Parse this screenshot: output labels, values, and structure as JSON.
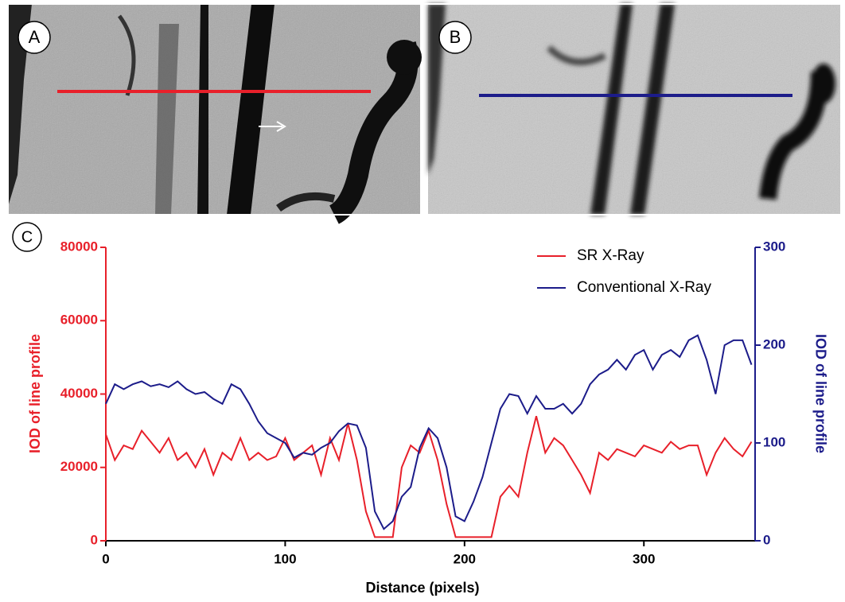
{
  "panel_labels": [
    "A",
    "B",
    "C"
  ],
  "chart_data": {
    "type": "line",
    "x_label": "Distance (pixels)",
    "y_label": "IOD of line profile",
    "y2_label": "IOD of line profile",
    "x": [
      0,
      5,
      10,
      15,
      20,
      25,
      30,
      35,
      40,
      45,
      50,
      55,
      60,
      65,
      70,
      75,
      80,
      85,
      90,
      95,
      100,
      105,
      110,
      115,
      120,
      125,
      130,
      135,
      140,
      145,
      150,
      155,
      160,
      165,
      170,
      175,
      180,
      185,
      190,
      195,
      200,
      205,
      210,
      215,
      220,
      225,
      230,
      235,
      240,
      245,
      250,
      255,
      260,
      265,
      270,
      275,
      280,
      285,
      290,
      295,
      300,
      305,
      310,
      315,
      320,
      325,
      330,
      335,
      340,
      345,
      350,
      355,
      360
    ],
    "series": [
      {
        "name": "SR X-Ray",
        "color": "#e8202a",
        "axis": "y",
        "values": [
          29000,
          22000,
          26000,
          25000,
          30000,
          27000,
          24000,
          28000,
          22000,
          24000,
          20000,
          25000,
          18000,
          24000,
          22000,
          28000,
          22000,
          24000,
          22000,
          23000,
          28000,
          22000,
          24000,
          26000,
          18000,
          28000,
          22000,
          32000,
          22000,
          8000,
          1000,
          1000,
          1000,
          20000,
          26000,
          24000,
          30000,
          22000,
          10000,
          1000,
          1000,
          1000,
          1000,
          1000,
          12000,
          15000,
          12000,
          24000,
          34000,
          24000,
          28000,
          26000,
          22000,
          18000,
          13000,
          24000,
          22000,
          25000,
          24000,
          23000,
          26000,
          25000,
          24000,
          27000,
          25000,
          26000,
          26000,
          18000,
          24000,
          28000,
          25000,
          23000,
          27000
        ]
      },
      {
        "name": "Conventional X-Ray",
        "color": "#1c1c8a",
        "axis": "y2",
        "values": [
          140,
          160,
          155,
          160,
          163,
          158,
          160,
          157,
          163,
          155,
          150,
          152,
          145,
          140,
          160,
          155,
          140,
          122,
          110,
          105,
          100,
          85,
          90,
          88,
          95,
          100,
          112,
          120,
          118,
          95,
          30,
          12,
          20,
          45,
          55,
          95,
          115,
          105,
          75,
          25,
          20,
          40,
          65,
          100,
          135,
          150,
          148,
          130,
          148,
          135,
          135,
          140,
          130,
          140,
          160,
          170,
          175,
          185,
          175,
          190,
          195,
          175,
          190,
          195,
          188,
          205,
          210,
          185,
          150,
          200,
          205,
          205,
          180
        ]
      }
    ],
    "xlim": [
      0,
      362
    ],
    "xticks": [
      0,
      100,
      200,
      300
    ],
    "ylim": [
      0,
      80000
    ],
    "yticks": [
      0,
      20000,
      40000,
      60000,
      80000
    ],
    "y2lim": [
      0,
      300
    ],
    "y2ticks": [
      0,
      100,
      200,
      300
    ],
    "legend": "upper right"
  }
}
